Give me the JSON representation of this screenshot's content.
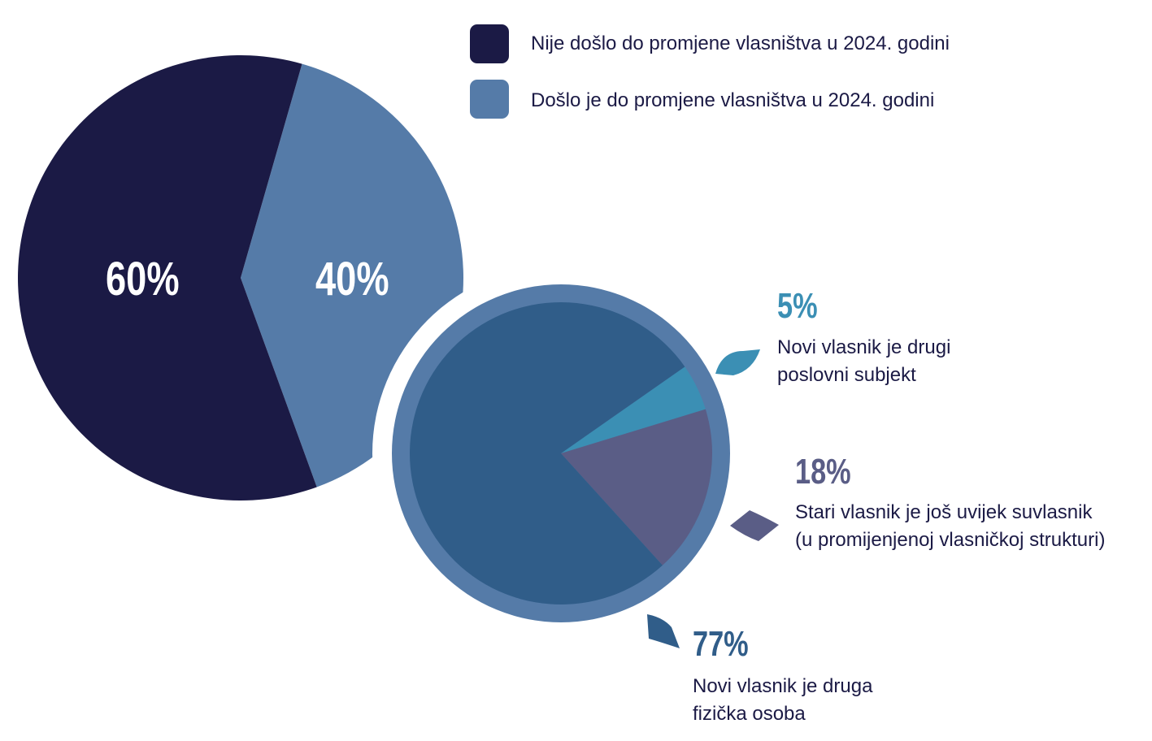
{
  "chart_data": [
    {
      "type": "pie",
      "legend": {
        "placement": "top-right",
        "entries": [
          {
            "label": "Nije došlo do promjene vlasništva u 2024. godini",
            "color": "#1b1a45"
          },
          {
            "label": "Došlo je do promjene vlasništva u 2024. godini",
            "color": "#557ba8"
          }
        ]
      },
      "slices": [
        {
          "legend_index": 0,
          "value": 60,
          "label": "60%",
          "color": "#1b1a45"
        },
        {
          "legend_index": 1,
          "value": 40,
          "label": "40%",
          "color": "#557ba8"
        }
      ]
    },
    {
      "type": "pie",
      "ring_color": "#557ba8",
      "slices": [
        {
          "value": 5,
          "label": "5%",
          "description": [
            "Novi vlasnik je drugi",
            "poslovni subjekt"
          ],
          "color": "#3b8fb4"
        },
        {
          "value": 18,
          "label": "18%",
          "description": [
            "Stari vlasnik je još uvijek suvlasnik",
            "(u promijenjenoj vlasničkoj strukturi)"
          ],
          "color": "#5a5d86"
        },
        {
          "value": 77,
          "label": "77%",
          "description": [
            "Novi vlasnik je druga",
            "fizička osoba"
          ],
          "color": "#305d89"
        }
      ]
    }
  ]
}
